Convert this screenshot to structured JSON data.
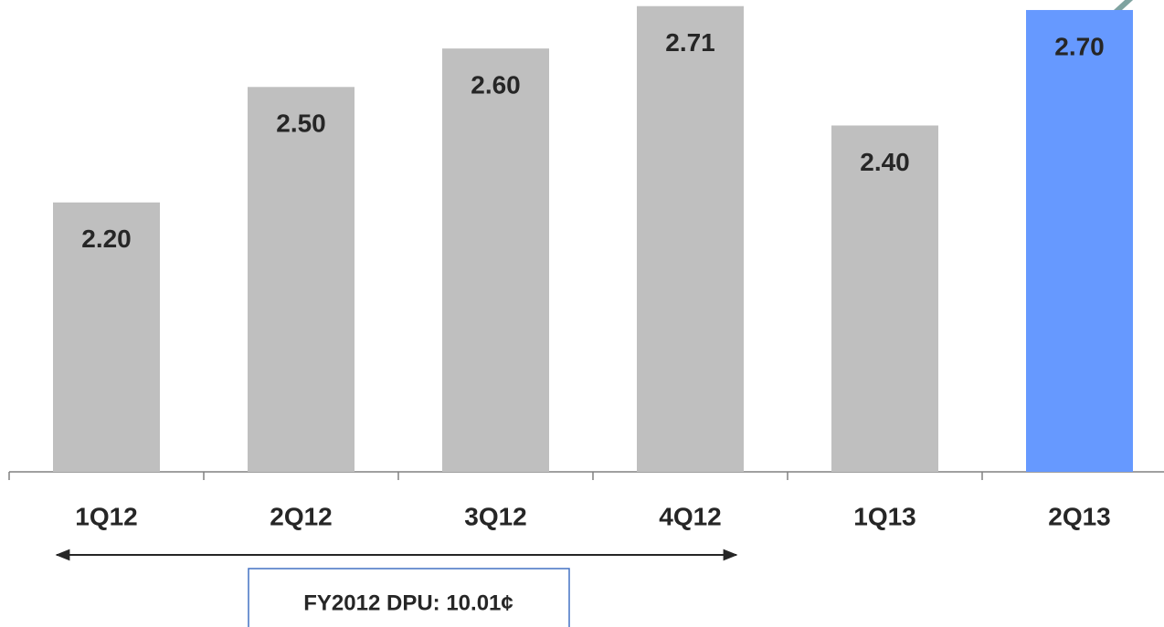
{
  "chart_data": {
    "type": "bar",
    "categories": [
      "1Q12",
      "2Q12",
      "3Q12",
      "4Q12",
      "1Q13",
      "2Q13"
    ],
    "values": [
      2.2,
      2.5,
      2.6,
      2.71,
      2.4,
      2.7
    ],
    "value_labels": [
      "2.20",
      "2.50",
      "2.60",
      "2.71",
      "2.40",
      "2.70"
    ],
    "colors": [
      "#bfbfbf",
      "#bfbfbf",
      "#bfbfbf",
      "#bfbfbf",
      "#bfbfbf",
      "#6699ff"
    ],
    "ylim": [
      1.5,
      2.726
    ],
    "annotation": "FY2012 DPU: 10.01¢"
  }
}
